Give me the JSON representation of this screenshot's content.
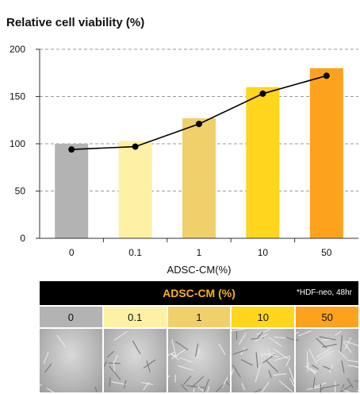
{
  "chart_data": {
    "type": "bar",
    "title": "Relative cell viability (%)",
    "xlabel": "ADSC-CM(%)",
    "ylabel": "",
    "categories": [
      "0",
      "0.1",
      "1",
      "10",
      "50"
    ],
    "values": [
      100,
      103,
      127,
      160,
      180
    ],
    "line_values": [
      94,
      97,
      121,
      153,
      172
    ],
    "bar_colors": [
      "#b3b3b3",
      "#fdf1a5",
      "#efd06a",
      "#ffd51d",
      "#fda21c"
    ],
    "ylim": [
      0,
      200
    ],
    "yticks": [
      0,
      50,
      100,
      150,
      200
    ],
    "grid": true,
    "legend": "none"
  },
  "panel": {
    "header_title": "ADSC-CM (%)",
    "header_note": "*HDF-neo, 48hr",
    "cells": [
      {
        "label": "0",
        "color": "#b3b3b3"
      },
      {
        "label": "0.1",
        "color": "#fdf1a5"
      },
      {
        "label": "1",
        "color": "#efd06a"
      },
      {
        "label": "10",
        "color": "#ffd51d"
      },
      {
        "label": "50",
        "color": "#fda21c"
      }
    ]
  }
}
